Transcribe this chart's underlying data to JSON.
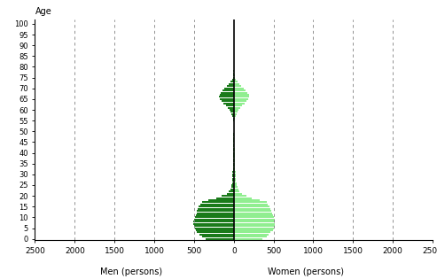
{
  "men_color": "#1a7a1a",
  "women_color": "#90ee90",
  "xlabel_men": "Men (persons)",
  "xlabel_women": "Women (persons)",
  "ylabel": "Age",
  "xticks": [
    -2500,
    -2000,
    -1500,
    -1000,
    -500,
    0,
    500,
    1000,
    1500,
    2000,
    2500
  ],
  "xticklabels": [
    "2500",
    "2000",
    "1500",
    "1000",
    "500",
    "0",
    "500",
    "1000",
    "1500",
    "2000",
    "2500"
  ],
  "grid_positions": [
    -2000,
    -1500,
    -1000,
    -500,
    500,
    1000,
    1500,
    2000
  ],
  "men_vals": [
    350,
    400,
    430,
    460,
    480,
    490,
    500,
    510,
    510,
    500,
    490,
    480,
    470,
    460,
    450,
    440,
    420,
    400,
    320,
    220,
    150,
    90,
    60,
    45,
    35,
    30,
    25,
    22,
    20,
    18,
    16,
    14,
    13,
    12,
    11,
    10,
    9,
    8,
    8,
    7,
    6,
    6,
    5,
    5,
    4,
    4,
    3,
    3,
    3,
    3,
    2,
    2,
    2,
    2,
    2,
    5,
    10,
    18,
    28,
    40,
    55,
    75,
    100,
    130,
    155,
    175,
    185,
    180,
    165,
    145,
    115,
    85,
    60,
    38,
    22,
    13,
    8,
    5,
    3,
    2,
    1,
    1,
    0,
    0,
    0,
    0,
    0,
    0,
    0,
    0,
    0,
    0,
    0,
    0,
    0,
    0,
    0,
    0,
    0,
    0,
    0
  ],
  "women_vals": [
    360,
    410,
    440,
    465,
    490,
    500,
    510,
    515,
    515,
    510,
    500,
    490,
    480,
    470,
    455,
    450,
    430,
    410,
    330,
    230,
    160,
    100,
    70,
    55,
    45,
    40,
    35,
    30,
    28,
    25,
    22,
    20,
    18,
    17,
    16,
    15,
    14,
    13,
    12,
    11,
    10,
    9,
    9,
    8,
    7,
    7,
    6,
    6,
    5,
    5,
    5,
    4,
    4,
    4,
    3,
    7,
    14,
    22,
    33,
    47,
    63,
    83,
    108,
    138,
    163,
    183,
    193,
    188,
    173,
    153,
    123,
    93,
    68,
    45,
    28,
    18,
    12,
    8,
    5,
    3,
    2,
    1,
    1,
    0,
    0,
    0,
    0,
    0,
    0,
    0,
    0,
    0,
    0,
    0,
    0,
    0,
    0,
    0,
    0,
    0,
    0
  ]
}
